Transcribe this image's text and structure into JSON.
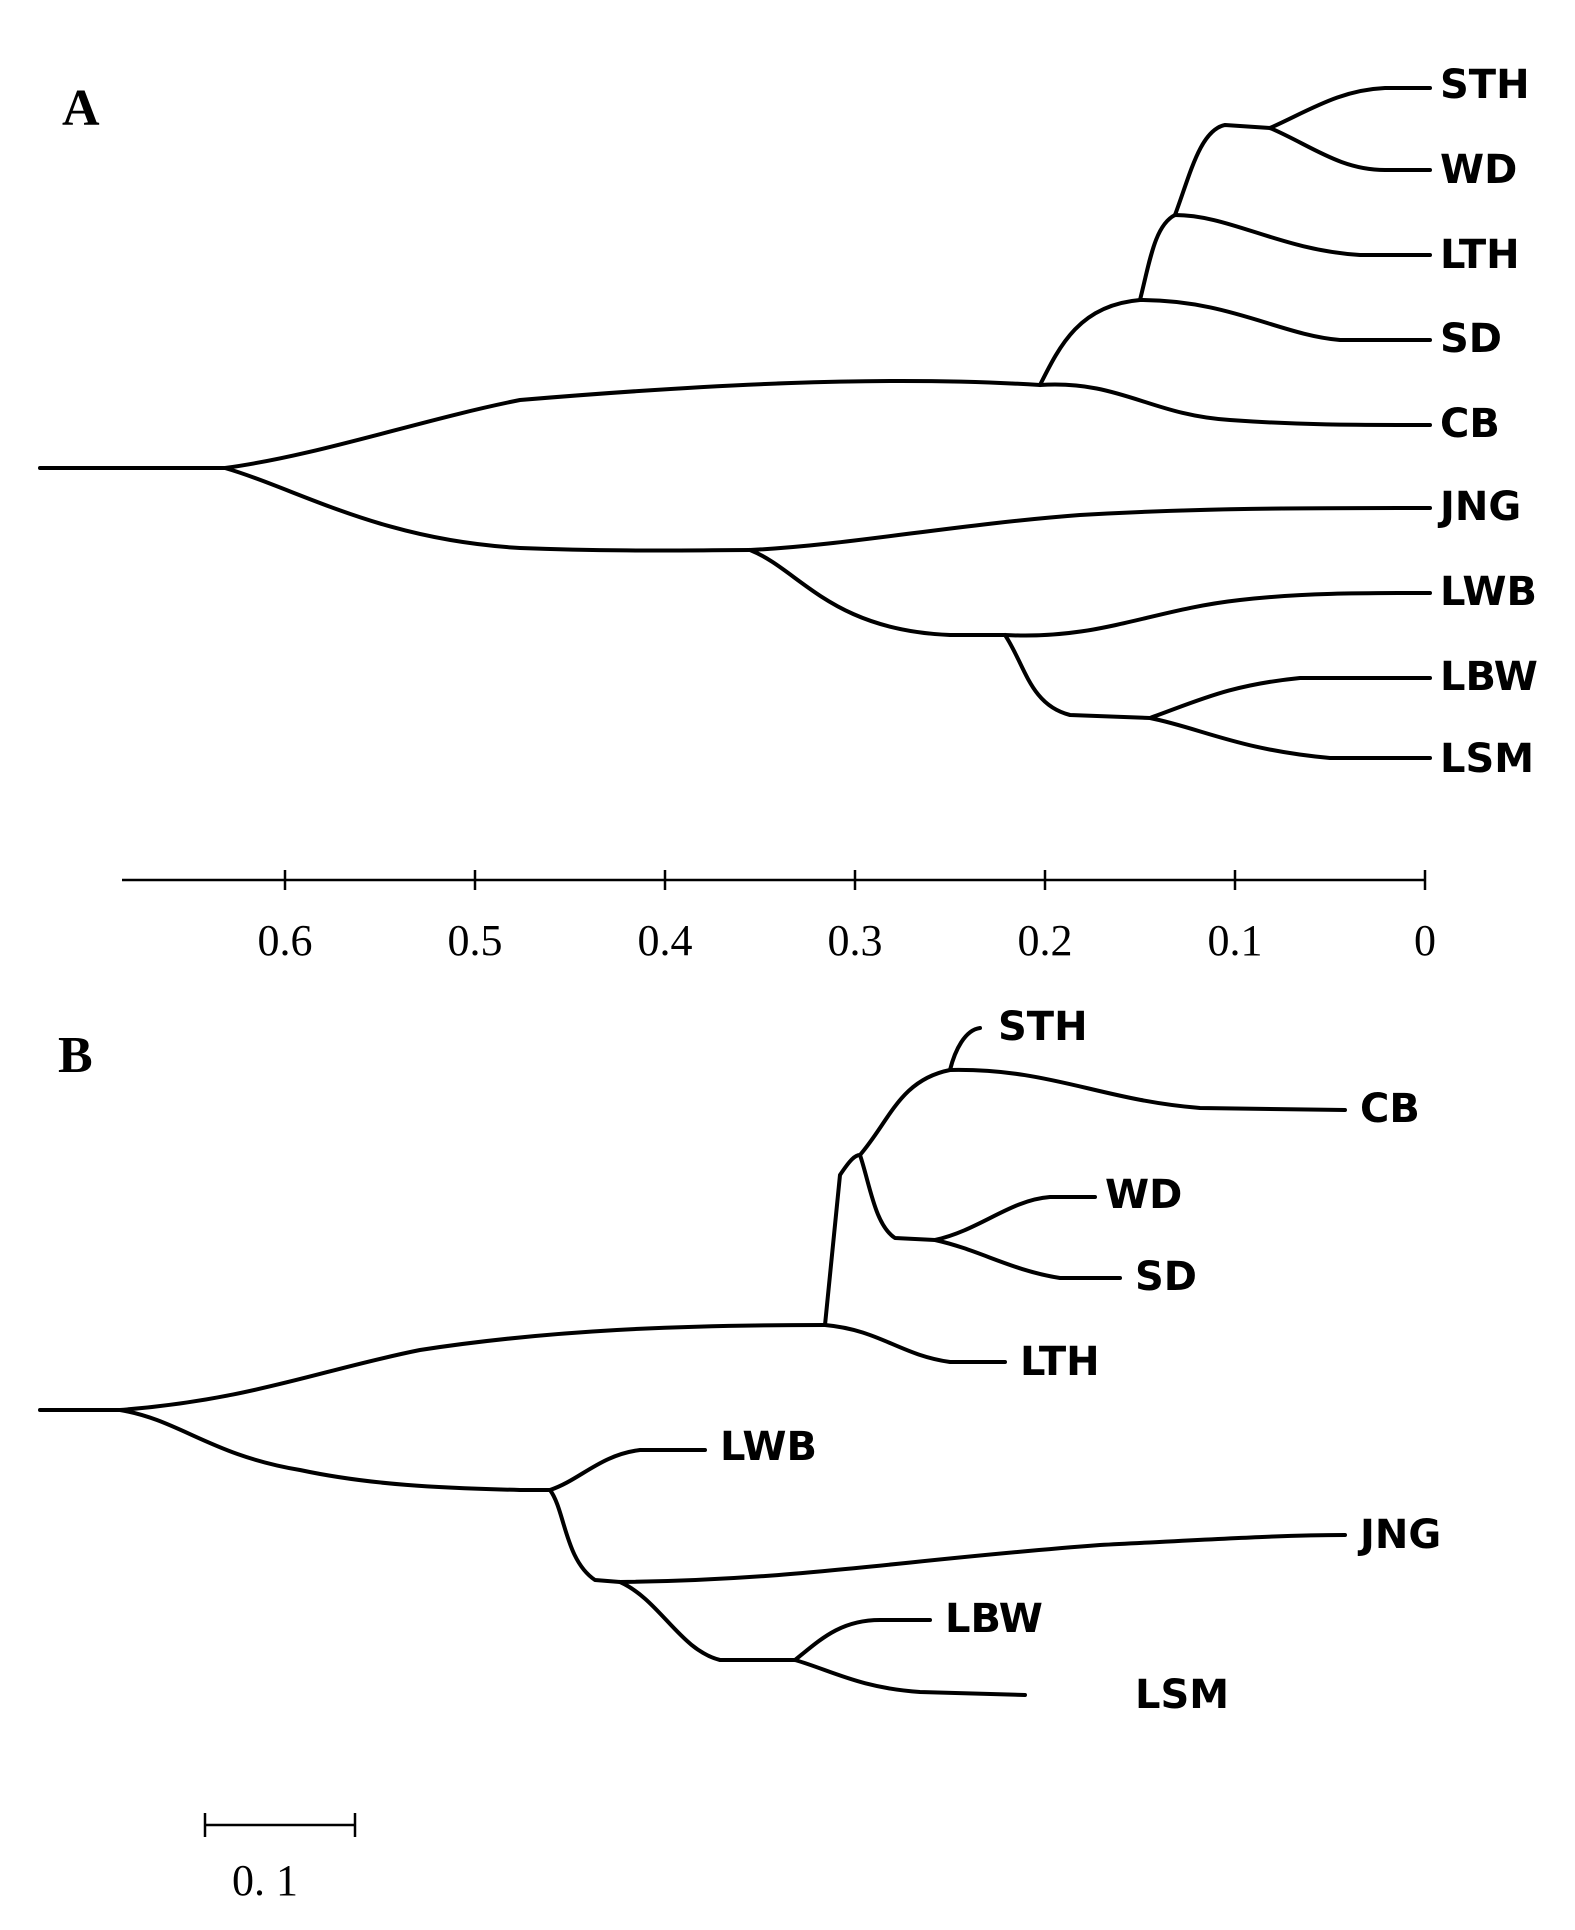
{
  "panel_a": {
    "label": "A",
    "leaves": [
      "STH",
      "WD",
      "LTH",
      "SD",
      "CB",
      "JNG",
      "LWB",
      "LBW",
      "LSM"
    ],
    "axis": {
      "ticks": [
        {
          "value": 0.6,
          "label": "0.6"
        },
        {
          "value": 0.5,
          "label": "0.5"
        },
        {
          "value": 0.4,
          "label": "0.4"
        },
        {
          "value": 0.3,
          "label": "0.3"
        },
        {
          "value": 0.2,
          "label": "0.2"
        },
        {
          "value": 0.1,
          "label": "0.1"
        },
        {
          "value": 0,
          "label": "0"
        }
      ]
    }
  },
  "panel_b": {
    "label": "B",
    "leaves": [
      "STH",
      "CB",
      "WD",
      "SD",
      "LTH",
      "LWB",
      "JNG",
      "LBW",
      "LSM"
    ],
    "scale_bar": {
      "value": 0.1,
      "label": "0. 1"
    }
  }
}
